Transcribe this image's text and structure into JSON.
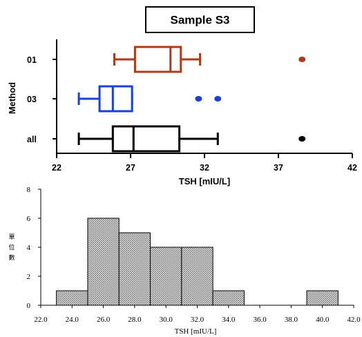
{
  "chart_data": [
    {
      "type": "boxplot",
      "title": "Sample S3",
      "xlabel": "TSH [mIU/L]",
      "ylabel": "Method",
      "xlim": [
        22,
        42
      ],
      "xticks": [
        "22",
        "27",
        "32",
        "37",
        "42"
      ],
      "grid": false,
      "series": [
        {
          "name": "01",
          "color": "#B03A17",
          "min": 25.9,
          "q1": 27.3,
          "median": 29.7,
          "q3": 30.4,
          "max": 31.7,
          "outliers": [
            38.6
          ]
        },
        {
          "name": "03",
          "color": "#1A3FE0",
          "min": 23.5,
          "q1": 24.9,
          "median": 25.8,
          "q3": 27.1,
          "max": 27.1,
          "outliers": [
            31.6,
            32.9
          ]
        },
        {
          "name": "all",
          "color": "#000000",
          "min": 23.5,
          "q1": 25.8,
          "median": 27.2,
          "q3": 30.3,
          "max": 32.9,
          "outliers": [
            38.6
          ]
        }
      ]
    },
    {
      "type": "bar",
      "title": "",
      "xlabel": "TSH [mIU/L]",
      "ylabel": "單位數",
      "xlim": [
        22,
        42
      ],
      "ylim": [
        0,
        8
      ],
      "xticks": [
        "22.0",
        "24.0",
        "26.0",
        "28.0",
        "30.0",
        "32.0",
        "34.0",
        "36.0",
        "38.0",
        "40.0",
        "42.0"
      ],
      "yticks": [
        "0",
        "2",
        "4",
        "6",
        "8"
      ],
      "bin_width": 2,
      "bins": [
        {
          "x": 24,
          "value": 1
        },
        {
          "x": 26,
          "value": 6
        },
        {
          "x": 28,
          "value": 5
        },
        {
          "x": 30,
          "value": 4
        },
        {
          "x": 32,
          "value": 4
        },
        {
          "x": 34,
          "value": 1
        },
        {
          "x": 40,
          "value": 1
        }
      ],
      "fill": "crosshatch"
    }
  ]
}
